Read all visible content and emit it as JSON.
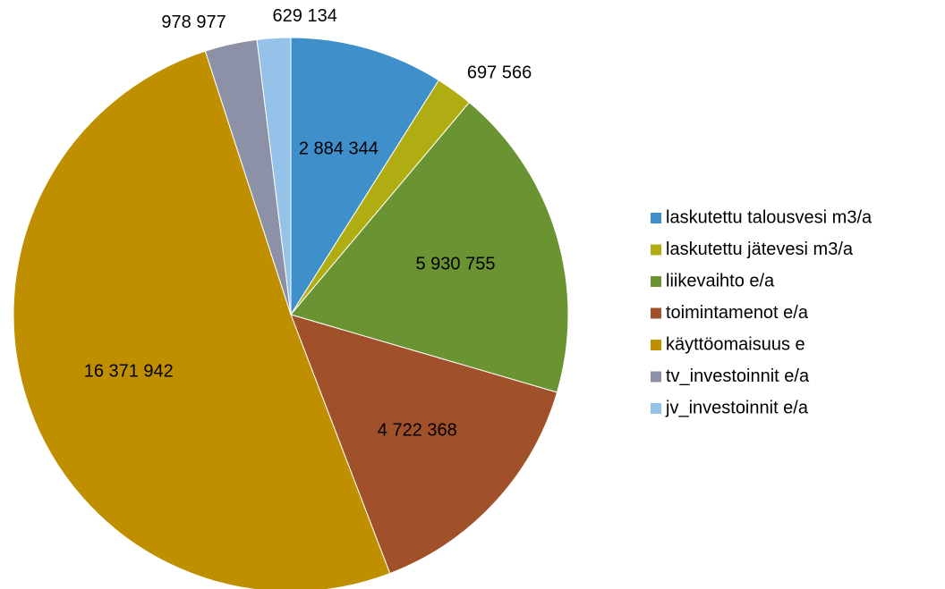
{
  "chart_data": {
    "type": "pie",
    "categories": [
      "laskutettu talousvesi m3/a",
      "laskutettu jätevesi m3/a",
      "liikevaihto e/a",
      "toimintamenot e/a",
      "käyttöomaisuus e",
      "tv_investoinnit e/a",
      "jv_investoinnit e/a"
    ],
    "values": [
      2884344,
      697566,
      5930755,
      4722368,
      16371942,
      978977,
      629134
    ],
    "value_labels": [
      "2 884 344",
      "697 566",
      "5 930 755",
      "4 722 368",
      "16 371 942",
      "978 977",
      "629 134"
    ],
    "colors": [
      "#3f8fcb",
      "#b0ad12",
      "#6a9331",
      "#a15129",
      "#c08f00",
      "#8d91a7",
      "#94c2e8"
    ],
    "legend": "right"
  }
}
